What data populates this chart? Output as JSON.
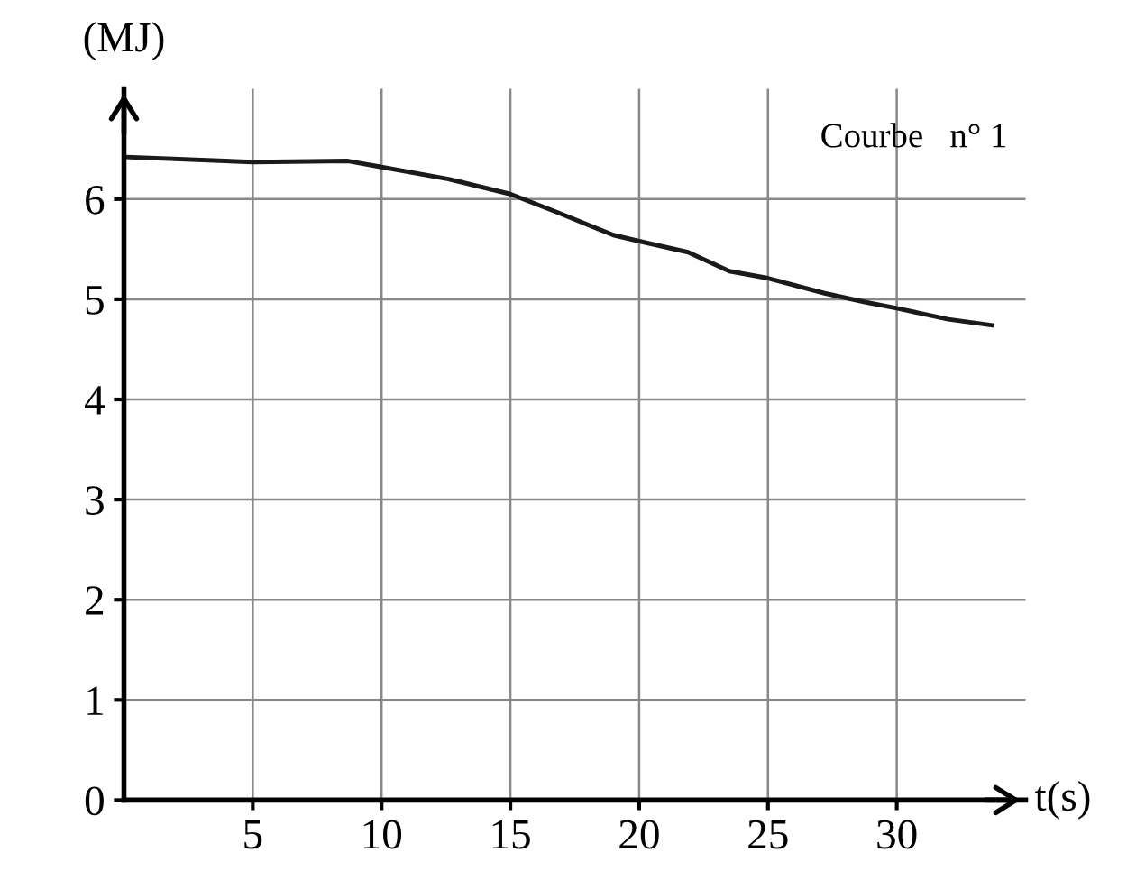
{
  "chart_data": {
    "type": "line",
    "xlabel": "t(s)",
    "ylabel": "(MJ)",
    "annotations": [
      "Courbe   n° 1"
    ],
    "x": [
      0.1,
      5,
      8.7,
      10,
      12.6,
      15,
      16.8,
      19,
      20,
      21.9,
      23.5,
      25,
      27.2,
      28.8,
      30,
      32,
      33.7
    ],
    "series": [
      {
        "color": "#1a1a1a",
        "values": [
          6.42,
          6.37,
          6.38,
          6.32,
          6.2,
          6.05,
          5.87,
          5.64,
          5.58,
          5.47,
          5.28,
          5.21,
          5.06,
          4.97,
          4.91,
          4.8,
          4.74
        ]
      }
    ],
    "xlim": [
      0,
      35
    ],
    "ylim": [
      0,
      7.1
    ],
    "xticks": [
      5,
      10,
      15,
      20,
      25,
      30
    ],
    "yticks": [
      0,
      1,
      2,
      3,
      4,
      5,
      6
    ],
    "grid": true,
    "legend": false,
    "marker": "none",
    "line_style": "solid"
  }
}
